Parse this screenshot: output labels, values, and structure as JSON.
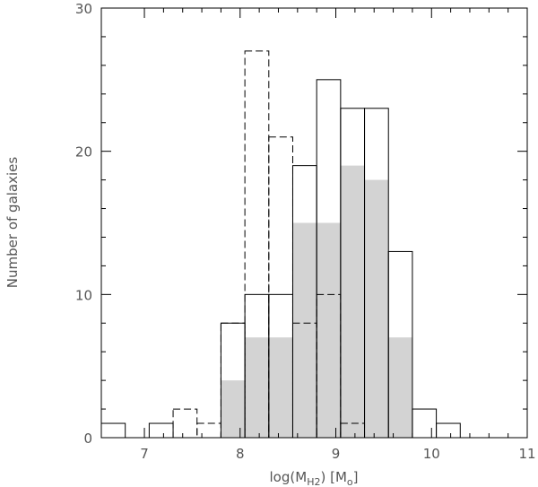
{
  "chart_data": {
    "type": "bar",
    "title": "",
    "xlabel": "log(M",
    "xlabel_sub": "H2",
    "xlabel_suffix": ") [M",
    "xlabel_sub2": "o",
    "xlabel_end": "]",
    "ylabel": "Number of galaxies",
    "xlim": [
      6.55,
      11.0
    ],
    "ylim": [
      0,
      30
    ],
    "xticks": [
      7,
      8,
      9,
      10,
      11
    ],
    "xtick_labels": [
      "7",
      "8",
      "9",
      "10",
      "11"
    ],
    "yticks": [
      0,
      10,
      20,
      30
    ],
    "ytick_labels": [
      "0",
      "10",
      "20",
      "30"
    ],
    "bin_width": 0.25,
    "grid": false,
    "series": [
      {
        "style": "solid",
        "color": "#000000",
        "bins": [
          {
            "x0": 6.55,
            "value": 1
          },
          {
            "x0": 7.05,
            "value": 1
          },
          {
            "x0": 7.8,
            "value": 8
          },
          {
            "x0": 8.05,
            "value": 10
          },
          {
            "x0": 8.3,
            "value": 10
          },
          {
            "x0": 8.55,
            "value": 19
          },
          {
            "x0": 8.8,
            "value": 25
          },
          {
            "x0": 9.05,
            "value": 23
          },
          {
            "x0": 9.3,
            "value": 23
          },
          {
            "x0": 9.55,
            "value": 13
          },
          {
            "x0": 9.8,
            "value": 2
          },
          {
            "x0": 10.05,
            "value": 1
          }
        ]
      },
      {
        "style": "filled",
        "color": "#d3d3d3",
        "bins": [
          {
            "x0": 7.8,
            "value": 4
          },
          {
            "x0": 8.05,
            "value": 7
          },
          {
            "x0": 8.3,
            "value": 7
          },
          {
            "x0": 8.55,
            "value": 15
          },
          {
            "x0": 8.8,
            "value": 15
          },
          {
            "x0": 9.05,
            "value": 19
          },
          {
            "x0": 9.3,
            "value": 18
          },
          {
            "x0": 9.55,
            "value": 7
          }
        ]
      },
      {
        "style": "dashed",
        "color": "#000000",
        "bins": [
          {
            "x0": 7.3,
            "value": 2
          },
          {
            "x0": 7.55,
            "value": 1
          },
          {
            "x0": 7.8,
            "value": 8
          },
          {
            "x0": 8.05,
            "value": 27
          },
          {
            "x0": 8.3,
            "value": 21
          },
          {
            "x0": 8.55,
            "value": 8
          },
          {
            "x0": 8.8,
            "value": 10
          },
          {
            "x0": 9.05,
            "value": 1
          }
        ]
      }
    ]
  }
}
